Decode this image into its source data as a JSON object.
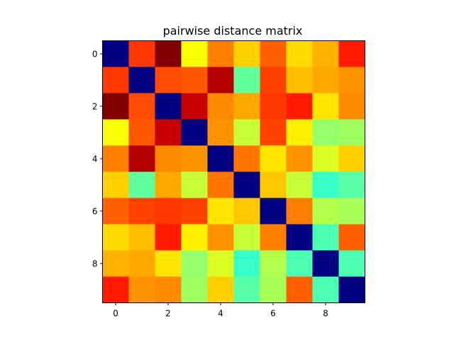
{
  "chart_data": {
    "type": "heatmap",
    "title": "pairwise distance matrix",
    "xlabel": "",
    "ylabel": "",
    "rows": 10,
    "cols": 10,
    "colormap": "jet",
    "value_range": [
      0,
      1
    ],
    "x_ticks": [
      "0",
      "2",
      "4",
      "6",
      "8"
    ],
    "x_tick_values": [
      0,
      2,
      4,
      6,
      8
    ],
    "y_ticks": [
      "0",
      "2",
      "4",
      "6",
      "8"
    ],
    "y_tick_values": [
      0,
      2,
      4,
      6,
      8
    ],
    "grid": false,
    "values": [
      [
        0.0,
        0.82,
        1.0,
        0.62,
        0.75,
        0.67,
        0.78,
        0.66,
        0.7,
        0.85
      ],
      [
        0.82,
        0.0,
        0.8,
        0.79,
        0.95,
        0.47,
        0.81,
        0.69,
        0.71,
        0.73
      ],
      [
        1.0,
        0.8,
        0.0,
        0.93,
        0.74,
        0.71,
        0.82,
        0.85,
        0.65,
        0.74
      ],
      [
        0.62,
        0.79,
        0.93,
        0.0,
        0.73,
        0.57,
        0.81,
        0.64,
        0.52,
        0.53
      ],
      [
        0.75,
        0.95,
        0.74,
        0.73,
        0.0,
        0.76,
        0.65,
        0.73,
        0.59,
        0.67
      ],
      [
        0.67,
        0.47,
        0.71,
        0.57,
        0.76,
        0.0,
        0.68,
        0.57,
        0.43,
        0.46
      ],
      [
        0.78,
        0.81,
        0.82,
        0.81,
        0.65,
        0.68,
        0.0,
        0.75,
        0.55,
        0.54
      ],
      [
        0.66,
        0.69,
        0.85,
        0.64,
        0.73,
        0.57,
        0.75,
        0.0,
        0.45,
        0.78
      ],
      [
        0.7,
        0.71,
        0.65,
        0.52,
        0.59,
        0.43,
        0.55,
        0.45,
        0.0,
        0.45
      ],
      [
        0.85,
        0.73,
        0.74,
        0.53,
        0.67,
        0.46,
        0.54,
        0.78,
        0.45,
        0.0
      ]
    ]
  }
}
